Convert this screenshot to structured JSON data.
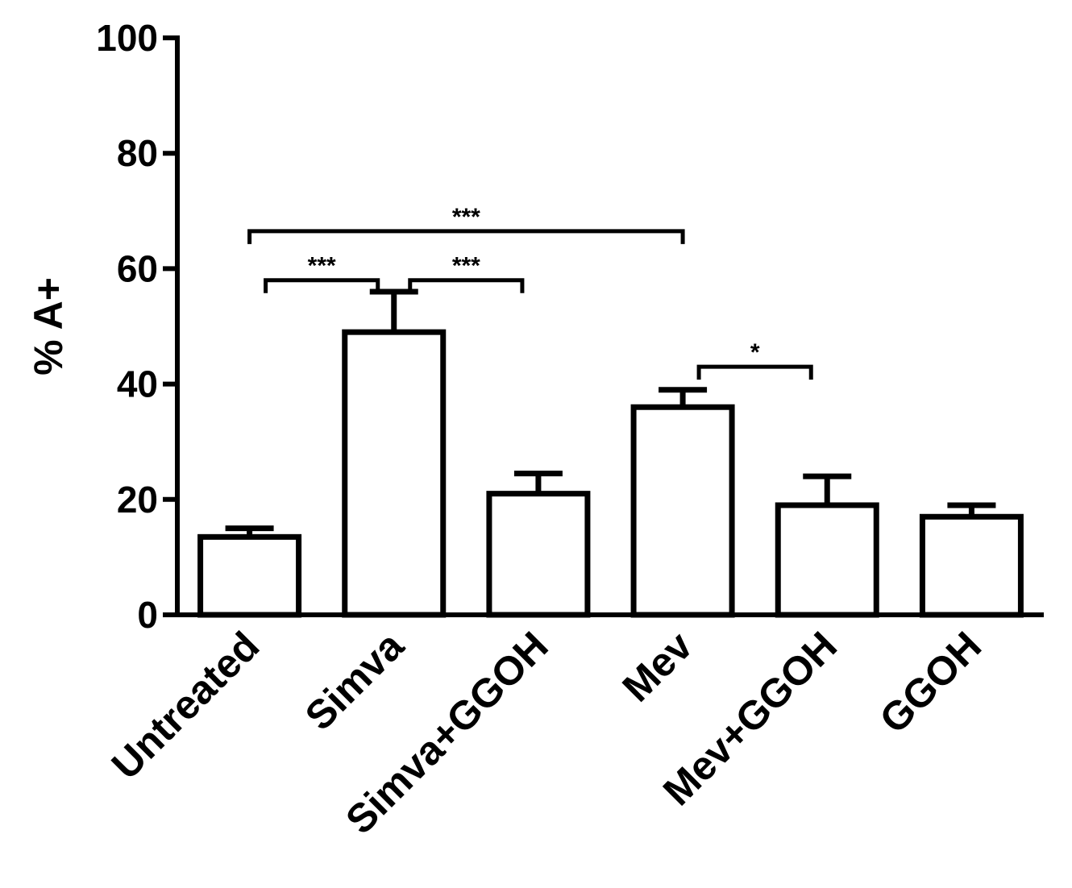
{
  "chart_data": {
    "type": "bar",
    "title": "",
    "xlabel": "",
    "ylabel": "% A+",
    "ylim": [
      0,
      100
    ],
    "yticks": [
      0,
      20,
      40,
      60,
      80,
      100
    ],
    "grid": false,
    "categories": [
      "Untreated",
      "Simva",
      "Simva+GGOH",
      "Mev",
      "Mev+GGOH",
      "GGOH"
    ],
    "values": [
      13.5,
      49,
      21,
      36,
      19,
      17
    ],
    "error_upper": [
      15,
      56,
      24.5,
      39,
      24,
      19
    ],
    "significance": [
      {
        "from": 0,
        "to": 3,
        "label": "***",
        "y": 66.5
      },
      {
        "from": 0,
        "to": 1,
        "label": "***",
        "y": 58
      },
      {
        "from": 1,
        "to": 2,
        "label": "***",
        "y": 58
      },
      {
        "from": 3,
        "to": 4,
        "label": "*",
        "y": 43
      }
    ]
  }
}
